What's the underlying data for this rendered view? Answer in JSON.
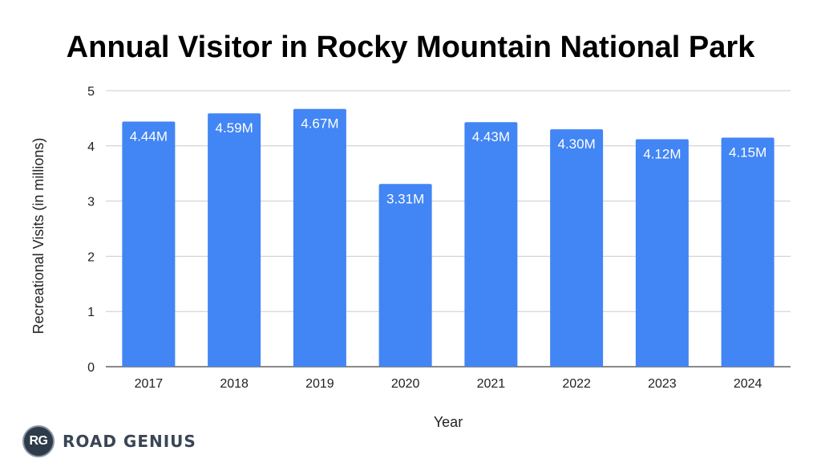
{
  "chart_data": {
    "type": "bar",
    "title": "Annual Visitor in Rocky Mountain National Park",
    "xlabel": "Year",
    "ylabel": "Recreational Visits (in millions)",
    "categories": [
      "2017",
      "2018",
      "2019",
      "2020",
      "2021",
      "2022",
      "2023",
      "2024"
    ],
    "values": [
      4.44,
      4.59,
      4.67,
      3.31,
      4.43,
      4.3,
      4.12,
      4.15
    ],
    "data_labels": [
      "4.44M",
      "4.59M",
      "4.67M",
      "3.31M",
      "4.43M",
      "4.30M",
      "4.12M",
      "4.15M"
    ],
    "ylim": [
      0,
      5
    ],
    "yticks": [
      "0",
      "1",
      "2",
      "3",
      "4",
      "5"
    ],
    "grid": true,
    "legend": "none",
    "bar_color": "#4285f4"
  },
  "branding": {
    "logo_initials": "RG",
    "logo_text": "ROAD GENIUS"
  }
}
